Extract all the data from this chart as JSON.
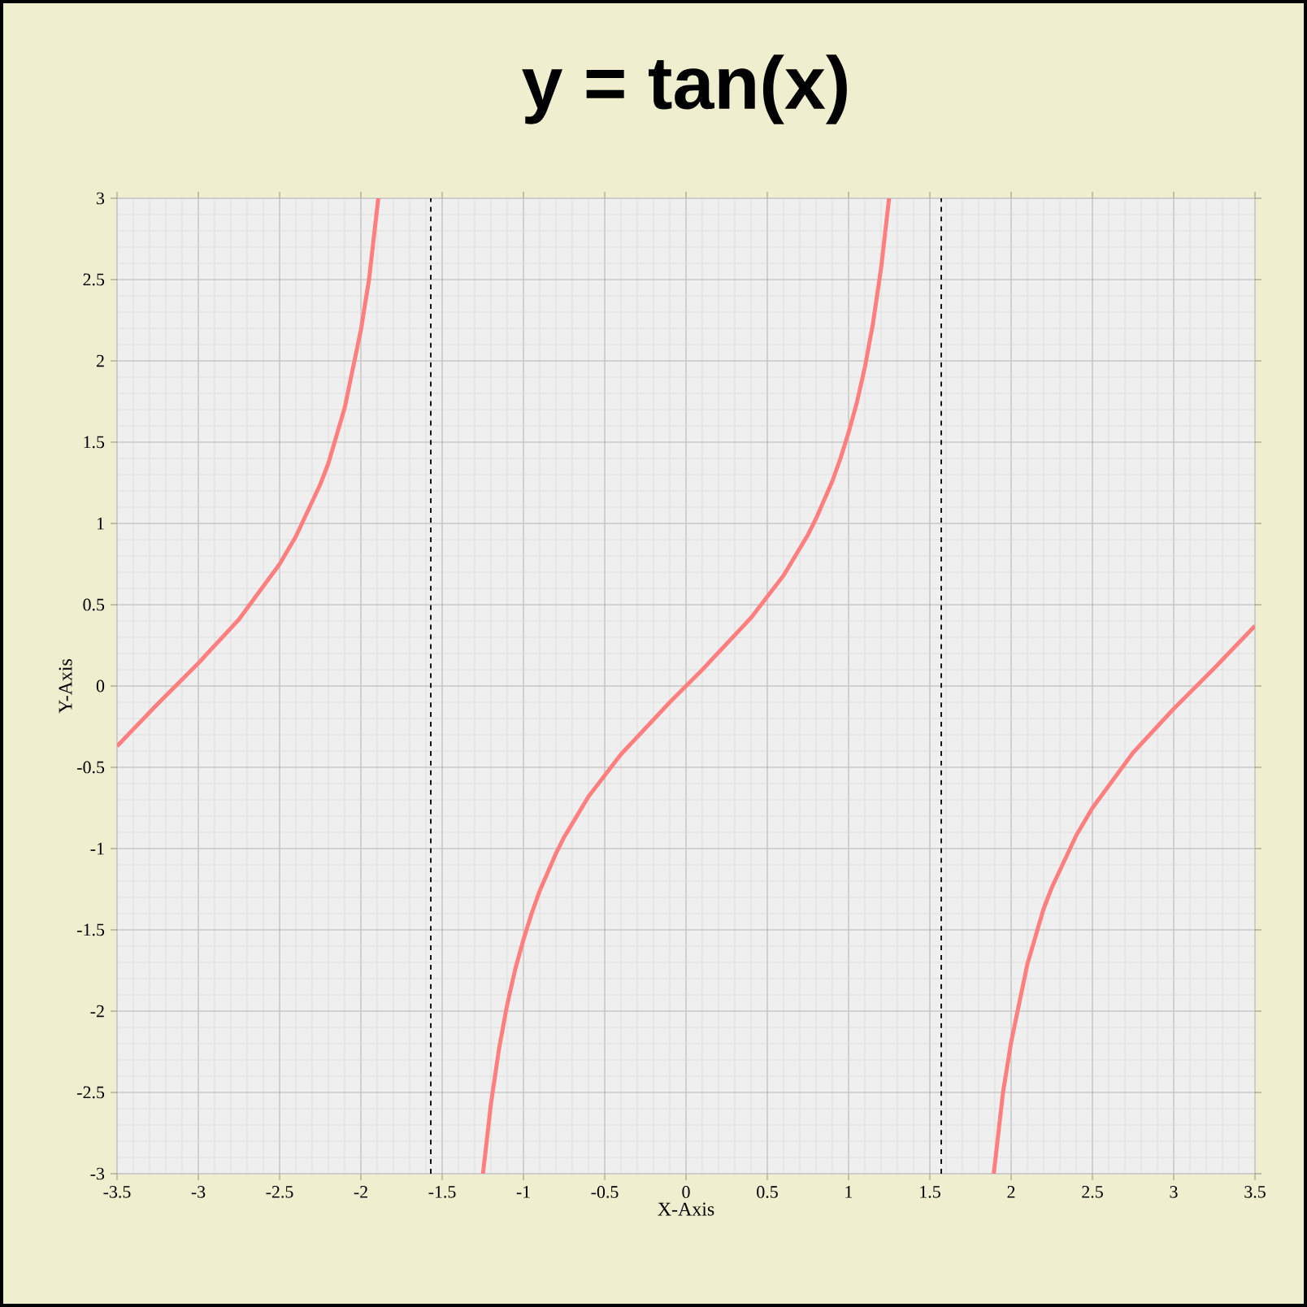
{
  "chart_data": {
    "type": "line",
    "title": "y = tan(x)",
    "xlabel": "X-Axis",
    "ylabel": "Y-Axis",
    "x": [
      -3.5,
      -3.25,
      -3.0,
      -2.75,
      -2.5,
      -2.4,
      -2.25,
      -2.2,
      -2.1,
      -2.0,
      -1.95,
      -1.893,
      -1.57,
      -1.249,
      -1.2,
      -1.15,
      -1.1,
      -1.05,
      -1.0,
      -0.95,
      -0.9,
      -0.8,
      -0.75,
      -0.6,
      -0.5,
      -0.4,
      -0.25,
      -0.1,
      0,
      0.1,
      0.25,
      0.4,
      0.5,
      0.6,
      0.75,
      0.8,
      0.9,
      0.95,
      1.0,
      1.05,
      1.1,
      1.15,
      1.2,
      1.249,
      1.57,
      1.893,
      1.95,
      2.0,
      2.1,
      2.2,
      2.25,
      2.4,
      2.5,
      2.75,
      3.0,
      3.25,
      3.5
    ],
    "series": [
      {
        "color": "#ff7f7f",
        "values": [
          -0.37,
          -0.11,
          0.14,
          0.41,
          0.75,
          0.92,
          1.24,
          1.37,
          1.71,
          2.19,
          2.5,
          3.0,
          null,
          -3.0,
          -2.57,
          -2.23,
          -1.96,
          -1.74,
          -1.56,
          -1.4,
          -1.26,
          -1.03,
          -0.93,
          -0.68,
          -0.55,
          -0.42,
          -0.26,
          -0.1,
          0,
          0.1,
          0.26,
          0.42,
          0.55,
          0.68,
          0.93,
          1.03,
          1.26,
          1.4,
          1.56,
          1.74,
          1.96,
          2.23,
          2.57,
          3.0,
          null,
          -3.0,
          -2.5,
          -2.19,
          -1.71,
          -1.37,
          -1.24,
          -0.92,
          -0.75,
          -0.41,
          -0.14,
          0.11,
          0.37
        ]
      }
    ],
    "xlim": [
      -3.5,
      3.5
    ],
    "ylim": [
      -3,
      3
    ],
    "xticks": [
      -3.5,
      -3,
      -2.5,
      -2,
      -1.5,
      -1,
      -0.5,
      0,
      0.5,
      1,
      1.5,
      2,
      2.5,
      3,
      3.5
    ],
    "yticks": [
      -3,
      -2.5,
      -2,
      -1.5,
      -1,
      -0.5,
      0,
      0.5,
      1,
      1.5,
      2,
      2.5,
      3
    ],
    "ref_lines": [
      {
        "axis": "x",
        "value": -1.57,
        "color": "#000000",
        "line_style": "dashed"
      },
      {
        "axis": "x",
        "value": 1.57,
        "color": "#000000",
        "line_style": "dashed"
      }
    ],
    "grid": true,
    "line_style": "solid"
  }
}
